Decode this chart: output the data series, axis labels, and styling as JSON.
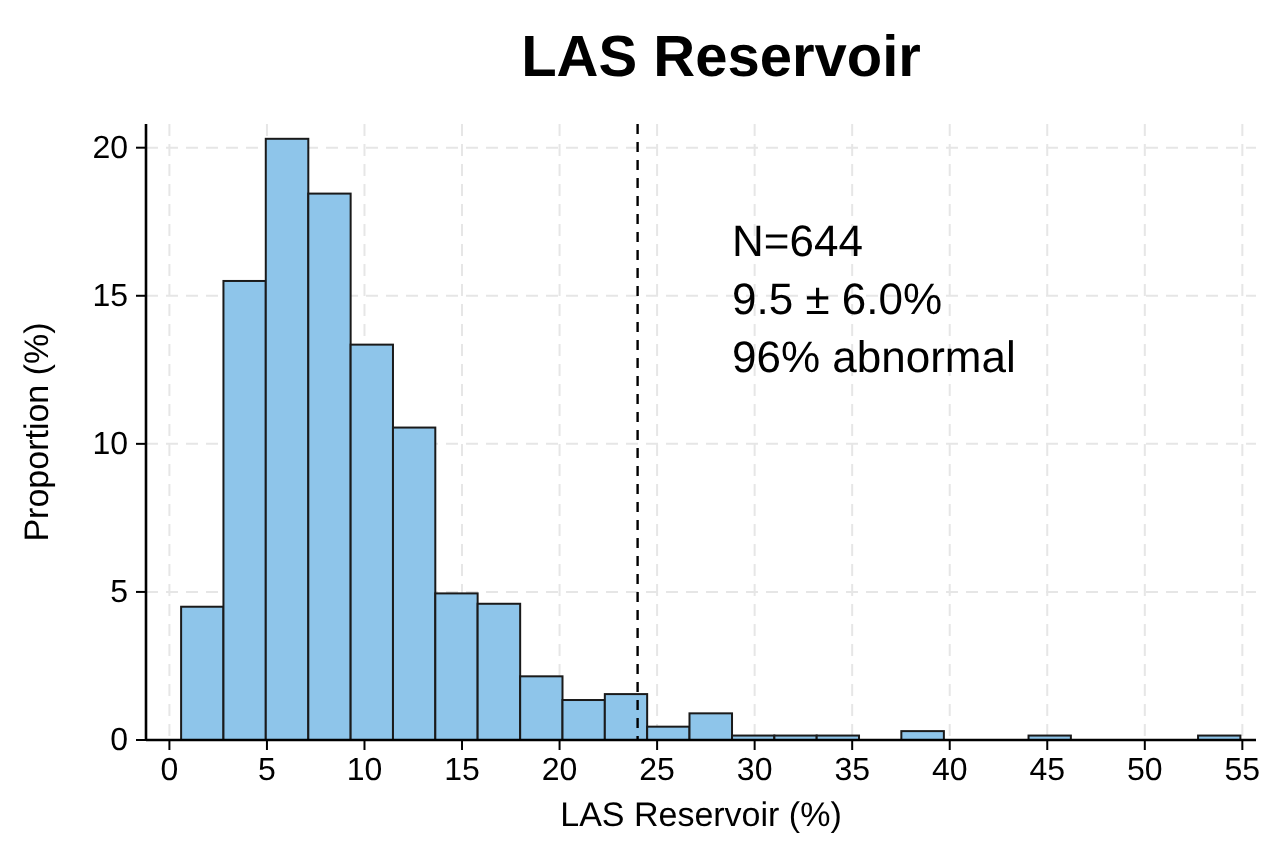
{
  "chart_data": {
    "type": "histogram",
    "title": "LAS Reservoir",
    "xlabel": "LAS Reservoir (%)",
    "ylabel": "Proportion (%)",
    "bins": [
      0.6,
      2.77,
      4.94,
      7.12,
      9.29,
      11.46,
      13.63,
      15.8,
      17.98,
      20.15,
      22.32,
      24.49,
      26.66,
      28.84,
      31.01,
      33.18,
      35.35,
      37.52,
      39.7,
      41.87,
      44.04,
      46.21,
      48.38,
      50.56,
      52.73,
      54.9
    ],
    "values": [
      4.5,
      15.5,
      20.3,
      18.45,
      13.35,
      10.55,
      4.95,
      4.6,
      2.15,
      1.35,
      1.55,
      0.45,
      0.9,
      0.15,
      0.15,
      0.15,
      0,
      0.3,
      0,
      0,
      0.15,
      0,
      0,
      0,
      0.15
    ],
    "color": "#8ec5ea",
    "xlim": [
      -1.2,
      55.7
    ],
    "xticks": [
      0,
      5,
      10,
      15,
      20,
      25,
      30,
      35,
      40,
      45,
      50,
      55
    ],
    "ylim": [
      0,
      20.8
    ],
    "yticks": [
      0,
      5,
      10,
      15,
      20
    ],
    "grid": true,
    "ref_lines": [
      {
        "axis": "x",
        "value": 24,
        "line_style": "dashed",
        "color": "#000000"
      }
    ],
    "annotations": [
      "N=644",
      "9.5 ± 6.0%",
      "96% abnormal"
    ]
  }
}
